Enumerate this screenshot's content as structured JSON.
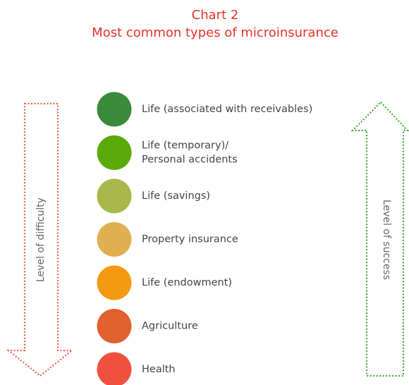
{
  "title": [
    "Chart 2",
    "Most common types of microinsurance"
  ],
  "left_arrow": {
    "label": "Level of difficulty",
    "color": "#f0604a"
  },
  "right_arrow": {
    "label": "Level of success",
    "color": "#3aaa3a"
  },
  "items": [
    {
      "lines": [
        "Life (associated with receivables)"
      ],
      "color": "#3a8a3a"
    },
    {
      "lines": [
        "Life (temporary)/",
        "Personal accidents"
      ],
      "color": "#5aaa0a"
    },
    {
      "lines": [
        "Life (savings)"
      ],
      "color": "#a8b84a"
    },
    {
      "lines": [
        "Property insurance"
      ],
      "color": "#dfb050"
    },
    {
      "lines": [
        "Life (endowment)"
      ],
      "color": "#f59a10"
    },
    {
      "lines": [
        "Agriculture"
      ],
      "color": "#e06030"
    },
    {
      "lines": [
        "Health"
      ],
      "color": "#f05040"
    }
  ]
}
